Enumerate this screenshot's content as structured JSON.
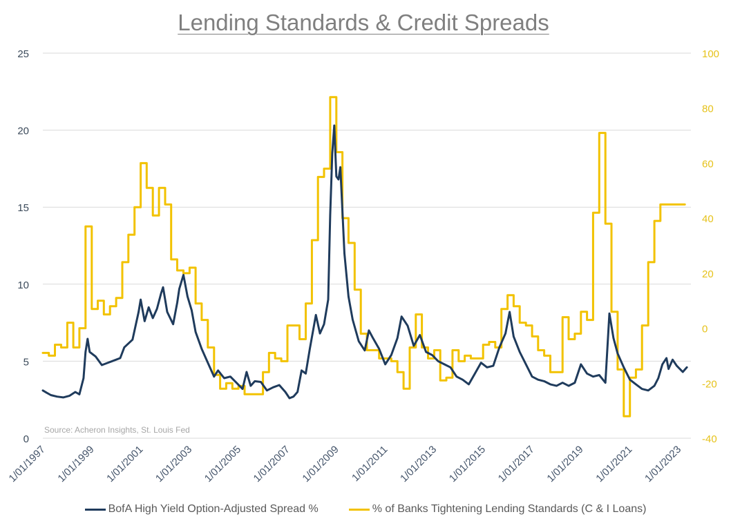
{
  "chart_data": {
    "type": "line",
    "title": "Lending Standards & Credit Spreads",
    "source_note": "Source: Acheron Insights, St. Louis Fed",
    "x_range": [
      "1997-01-01",
      "2023-07-01"
    ],
    "x_tick_labels": [
      "1/01/1997",
      "1/01/1999",
      "1/01/2001",
      "1/01/2003",
      "1/01/2005",
      "1/01/2007",
      "1/01/2009",
      "1/01/2011",
      "1/01/2013",
      "1/01/2015",
      "1/01/2017",
      "1/01/2019",
      "1/01/2021",
      "1/01/2023"
    ],
    "y_left": {
      "ticks": [
        "0",
        "5",
        "10",
        "15",
        "20",
        "25"
      ],
      "ylim": [
        0,
        25
      ]
    },
    "y_right": {
      "ticks": [
        "-40",
        "-20",
        "0",
        "20",
        "40",
        "60",
        "80",
        "100"
      ],
      "ylim": [
        -40,
        100
      ]
    },
    "grid": "horizontal",
    "legend_position": "bottom",
    "colors": {
      "spread": "#1f3b5c",
      "tightening": "#f2c200"
    },
    "series": [
      {
        "name": "BofA High Yield Option-Adjusted Spread %",
        "axis": "left",
        "points": [
          [
            "1997-01-01",
            3.1
          ],
          [
            "1997-03-01",
            2.95
          ],
          [
            "1997-05-01",
            2.8
          ],
          [
            "1997-08-01",
            2.7
          ],
          [
            "1997-11-01",
            2.65
          ],
          [
            "1998-02-01",
            2.75
          ],
          [
            "1998-05-01",
            3.0
          ],
          [
            "1998-07-01",
            2.85
          ],
          [
            "1998-09-01",
            3.9
          ],
          [
            "1998-10-01",
            5.6
          ],
          [
            "1998-11-01",
            6.45
          ],
          [
            "1998-12-01",
            5.6
          ],
          [
            "1999-03-01",
            5.3
          ],
          [
            "1999-06-01",
            4.75
          ],
          [
            "1999-09-01",
            4.9
          ],
          [
            "1999-12-01",
            5.05
          ],
          [
            "2000-03-01",
            5.2
          ],
          [
            "2000-05-01",
            5.9
          ],
          [
            "2000-09-01",
            6.4
          ],
          [
            "2000-12-01",
            8.2
          ],
          [
            "2001-01-01",
            9.0
          ],
          [
            "2001-03-01",
            7.6
          ],
          [
            "2001-05-01",
            8.5
          ],
          [
            "2001-07-01",
            7.8
          ],
          [
            "2001-09-01",
            8.4
          ],
          [
            "2001-11-01",
            9.4
          ],
          [
            "2001-12-01",
            9.8
          ],
          [
            "2002-02-01",
            8.2
          ],
          [
            "2002-05-01",
            7.4
          ],
          [
            "2002-07-01",
            8.8
          ],
          [
            "2002-08-01",
            9.7
          ],
          [
            "2002-10-01",
            10.6
          ],
          [
            "2002-12-01",
            9.2
          ],
          [
            "2003-02-01",
            8.3
          ],
          [
            "2003-04-01",
            6.9
          ],
          [
            "2003-07-01",
            5.8
          ],
          [
            "2003-10-01",
            4.9
          ],
          [
            "2004-01-01",
            4.0
          ],
          [
            "2004-03-01",
            4.4
          ],
          [
            "2004-06-01",
            3.9
          ],
          [
            "2004-09-01",
            4.0
          ],
          [
            "2004-12-01",
            3.6
          ],
          [
            "2005-03-01",
            3.2
          ],
          [
            "2005-05-01",
            4.3
          ],
          [
            "2005-07-01",
            3.4
          ],
          [
            "2005-09-01",
            3.7
          ],
          [
            "2005-12-01",
            3.65
          ],
          [
            "2006-03-01",
            3.1
          ],
          [
            "2006-06-01",
            3.3
          ],
          [
            "2006-09-01",
            3.45
          ],
          [
            "2006-12-01",
            3.0
          ],
          [
            "2007-02-01",
            2.6
          ],
          [
            "2007-04-01",
            2.7
          ],
          [
            "2007-06-01",
            3.0
          ],
          [
            "2007-08-01",
            4.4
          ],
          [
            "2007-10-01",
            4.2
          ],
          [
            "2007-12-01",
            5.8
          ],
          [
            "2008-03-01",
            8.0
          ],
          [
            "2008-05-01",
            6.8
          ],
          [
            "2008-07-01",
            7.4
          ],
          [
            "2008-09-01",
            9.0
          ],
          [
            "2008-10-01",
            14.5
          ],
          [
            "2008-11-01",
            18.5
          ],
          [
            "2008-12-01",
            20.3
          ],
          [
            "2009-01-01",
            17.0
          ],
          [
            "2009-02-01",
            16.8
          ],
          [
            "2009-03-01",
            17.6
          ],
          [
            "2009-05-01",
            12.0
          ],
          [
            "2009-07-01",
            9.2
          ],
          [
            "2009-09-01",
            7.7
          ],
          [
            "2009-12-01",
            6.3
          ],
          [
            "2010-03-01",
            5.7
          ],
          [
            "2010-05-01",
            7.0
          ],
          [
            "2010-07-01",
            6.5
          ],
          [
            "2010-10-01",
            5.8
          ],
          [
            "2011-01-01",
            4.8
          ],
          [
            "2011-04-01",
            5.4
          ],
          [
            "2011-07-01",
            6.5
          ],
          [
            "2011-09-01",
            7.9
          ],
          [
            "2011-12-01",
            7.3
          ],
          [
            "2012-03-01",
            6.0
          ],
          [
            "2012-06-01",
            6.7
          ],
          [
            "2012-09-01",
            5.6
          ],
          [
            "2012-12-01",
            5.4
          ],
          [
            "2013-03-01",
            5.0
          ],
          [
            "2013-06-01",
            4.8
          ],
          [
            "2013-09-01",
            4.6
          ],
          [
            "2013-12-01",
            4.0
          ],
          [
            "2014-03-01",
            3.8
          ],
          [
            "2014-06-01",
            3.5
          ],
          [
            "2014-09-01",
            4.2
          ],
          [
            "2014-12-01",
            4.9
          ],
          [
            "2015-03-01",
            4.6
          ],
          [
            "2015-06-01",
            4.7
          ],
          [
            "2015-09-01",
            5.9
          ],
          [
            "2015-12-01",
            6.8
          ],
          [
            "2016-02-01",
            8.2
          ],
          [
            "2016-04-01",
            6.6
          ],
          [
            "2016-07-01",
            5.6
          ],
          [
            "2016-10-01",
            4.8
          ],
          [
            "2017-01-01",
            4.0
          ],
          [
            "2017-04-01",
            3.8
          ],
          [
            "2017-07-01",
            3.7
          ],
          [
            "2017-10-01",
            3.5
          ],
          [
            "2018-01-01",
            3.4
          ],
          [
            "2018-04-01",
            3.6
          ],
          [
            "2018-07-01",
            3.4
          ],
          [
            "2018-10-01",
            3.6
          ],
          [
            "2019-01-01",
            4.8
          ],
          [
            "2019-04-01",
            4.2
          ],
          [
            "2019-07-01",
            4.0
          ],
          [
            "2019-10-01",
            4.1
          ],
          [
            "2020-01-01",
            3.6
          ],
          [
            "2020-03-01",
            8.1
          ],
          [
            "2020-05-01",
            6.5
          ],
          [
            "2020-07-01",
            5.5
          ],
          [
            "2020-10-01",
            4.6
          ],
          [
            "2021-01-01",
            3.8
          ],
          [
            "2021-04-01",
            3.5
          ],
          [
            "2021-07-01",
            3.2
          ],
          [
            "2021-10-01",
            3.1
          ],
          [
            "2022-01-01",
            3.4
          ],
          [
            "2022-03-01",
            3.9
          ],
          [
            "2022-05-01",
            4.8
          ],
          [
            "2022-07-01",
            5.2
          ],
          [
            "2022-08-01",
            4.5
          ],
          [
            "2022-10-01",
            5.1
          ],
          [
            "2022-12-01",
            4.7
          ],
          [
            "2023-03-01",
            4.3
          ],
          [
            "2023-05-01",
            4.6
          ]
        ]
      },
      {
        "name": "% of Banks Tightening Lending Standards (C & I Loans)",
        "axis": "right",
        "points": [
          [
            "1997-01-01",
            -9
          ],
          [
            "1997-04-01",
            -10
          ],
          [
            "1997-07-01",
            -6
          ],
          [
            "1997-10-01",
            -7
          ],
          [
            "1998-01-01",
            2
          ],
          [
            "1998-04-01",
            -7
          ],
          [
            "1998-07-01",
            0
          ],
          [
            "1998-10-01",
            37
          ],
          [
            "1999-01-01",
            7
          ],
          [
            "1999-04-01",
            10
          ],
          [
            "1999-07-01",
            5
          ],
          [
            "1999-10-01",
            8
          ],
          [
            "2000-01-01",
            11
          ],
          [
            "2000-04-01",
            24
          ],
          [
            "2000-07-01",
            34
          ],
          [
            "2000-10-01",
            44
          ],
          [
            "2001-01-01",
            60
          ],
          [
            "2001-04-01",
            51
          ],
          [
            "2001-07-01",
            41
          ],
          [
            "2001-10-01",
            51
          ],
          [
            "2002-01-01",
            45
          ],
          [
            "2002-04-01",
            25
          ],
          [
            "2002-07-01",
            21
          ],
          [
            "2002-10-01",
            20
          ],
          [
            "2003-01-01",
            22
          ],
          [
            "2003-04-01",
            9
          ],
          [
            "2003-07-01",
            3
          ],
          [
            "2003-10-01",
            -7
          ],
          [
            "2004-01-01",
            -17
          ],
          [
            "2004-04-01",
            -22
          ],
          [
            "2004-07-01",
            -20
          ],
          [
            "2004-10-01",
            -22
          ],
          [
            "2005-01-01",
            -21
          ],
          [
            "2005-04-01",
            -24
          ],
          [
            "2005-07-01",
            -24
          ],
          [
            "2005-10-01",
            -24
          ],
          [
            "2006-01-01",
            -16
          ],
          [
            "2006-04-01",
            -9
          ],
          [
            "2006-07-01",
            -11
          ],
          [
            "2006-10-01",
            -12
          ],
          [
            "2007-01-01",
            1
          ],
          [
            "2007-04-01",
            1
          ],
          [
            "2007-07-01",
            -4
          ],
          [
            "2007-10-01",
            9
          ],
          [
            "2008-01-01",
            32
          ],
          [
            "2008-04-01",
            55
          ],
          [
            "2008-07-01",
            58
          ],
          [
            "2008-10-01",
            84
          ],
          [
            "2009-01-01",
            64
          ],
          [
            "2009-04-01",
            40
          ],
          [
            "2009-07-01",
            31
          ],
          [
            "2009-10-01",
            14
          ],
          [
            "2010-01-01",
            -2
          ],
          [
            "2010-04-01",
            -8
          ],
          [
            "2010-07-01",
            -8
          ],
          [
            "2010-10-01",
            -11
          ],
          [
            "2011-01-01",
            -11
          ],
          [
            "2011-04-01",
            -12
          ],
          [
            "2011-07-01",
            -16
          ],
          [
            "2011-10-01",
            -22
          ],
          [
            "2012-01-01",
            -7
          ],
          [
            "2012-04-01",
            5
          ],
          [
            "2012-07-01",
            -7
          ],
          [
            "2012-10-01",
            -11
          ],
          [
            "2013-01-01",
            -8
          ],
          [
            "2013-04-01",
            -19
          ],
          [
            "2013-07-01",
            -18
          ],
          [
            "2013-10-01",
            -8
          ],
          [
            "2014-01-01",
            -12
          ],
          [
            "2014-04-01",
            -10
          ],
          [
            "2014-07-01",
            -11
          ],
          [
            "2014-10-01",
            -11
          ],
          [
            "2015-01-01",
            -6
          ],
          [
            "2015-04-01",
            -5
          ],
          [
            "2015-07-01",
            -7
          ],
          [
            "2015-10-01",
            7
          ],
          [
            "2016-01-01",
            12
          ],
          [
            "2016-04-01",
            8
          ],
          [
            "2016-07-01",
            2
          ],
          [
            "2016-10-01",
            1
          ],
          [
            "2017-01-01",
            -3
          ],
          [
            "2017-04-01",
            -8
          ],
          [
            "2017-07-01",
            -10
          ],
          [
            "2017-10-01",
            -16
          ],
          [
            "2018-01-01",
            -16
          ],
          [
            "2018-04-01",
            4
          ],
          [
            "2018-07-01",
            -4
          ],
          [
            "2018-10-01",
            -2
          ],
          [
            "2019-01-01",
            6
          ],
          [
            "2019-04-01",
            3
          ],
          [
            "2019-07-01",
            42
          ],
          [
            "2019-10-01",
            71
          ],
          [
            "2020-01-01",
            38
          ],
          [
            "2020-04-01",
            6
          ],
          [
            "2020-07-01",
            -15
          ],
          [
            "2020-10-01",
            -32
          ],
          [
            "2021-01-01",
            -18
          ],
          [
            "2021-04-01",
            -15
          ],
          [
            "2021-07-01",
            1
          ],
          [
            "2021-10-01",
            24
          ],
          [
            "2022-01-01",
            39
          ],
          [
            "2022-04-01",
            45
          ],
          [
            "2022-07-01",
            45
          ],
          [
            "2022-10-01",
            45
          ],
          [
            "2023-01-01",
            45
          ],
          [
            "2023-04-01",
            45
          ]
        ]
      }
    ]
  }
}
